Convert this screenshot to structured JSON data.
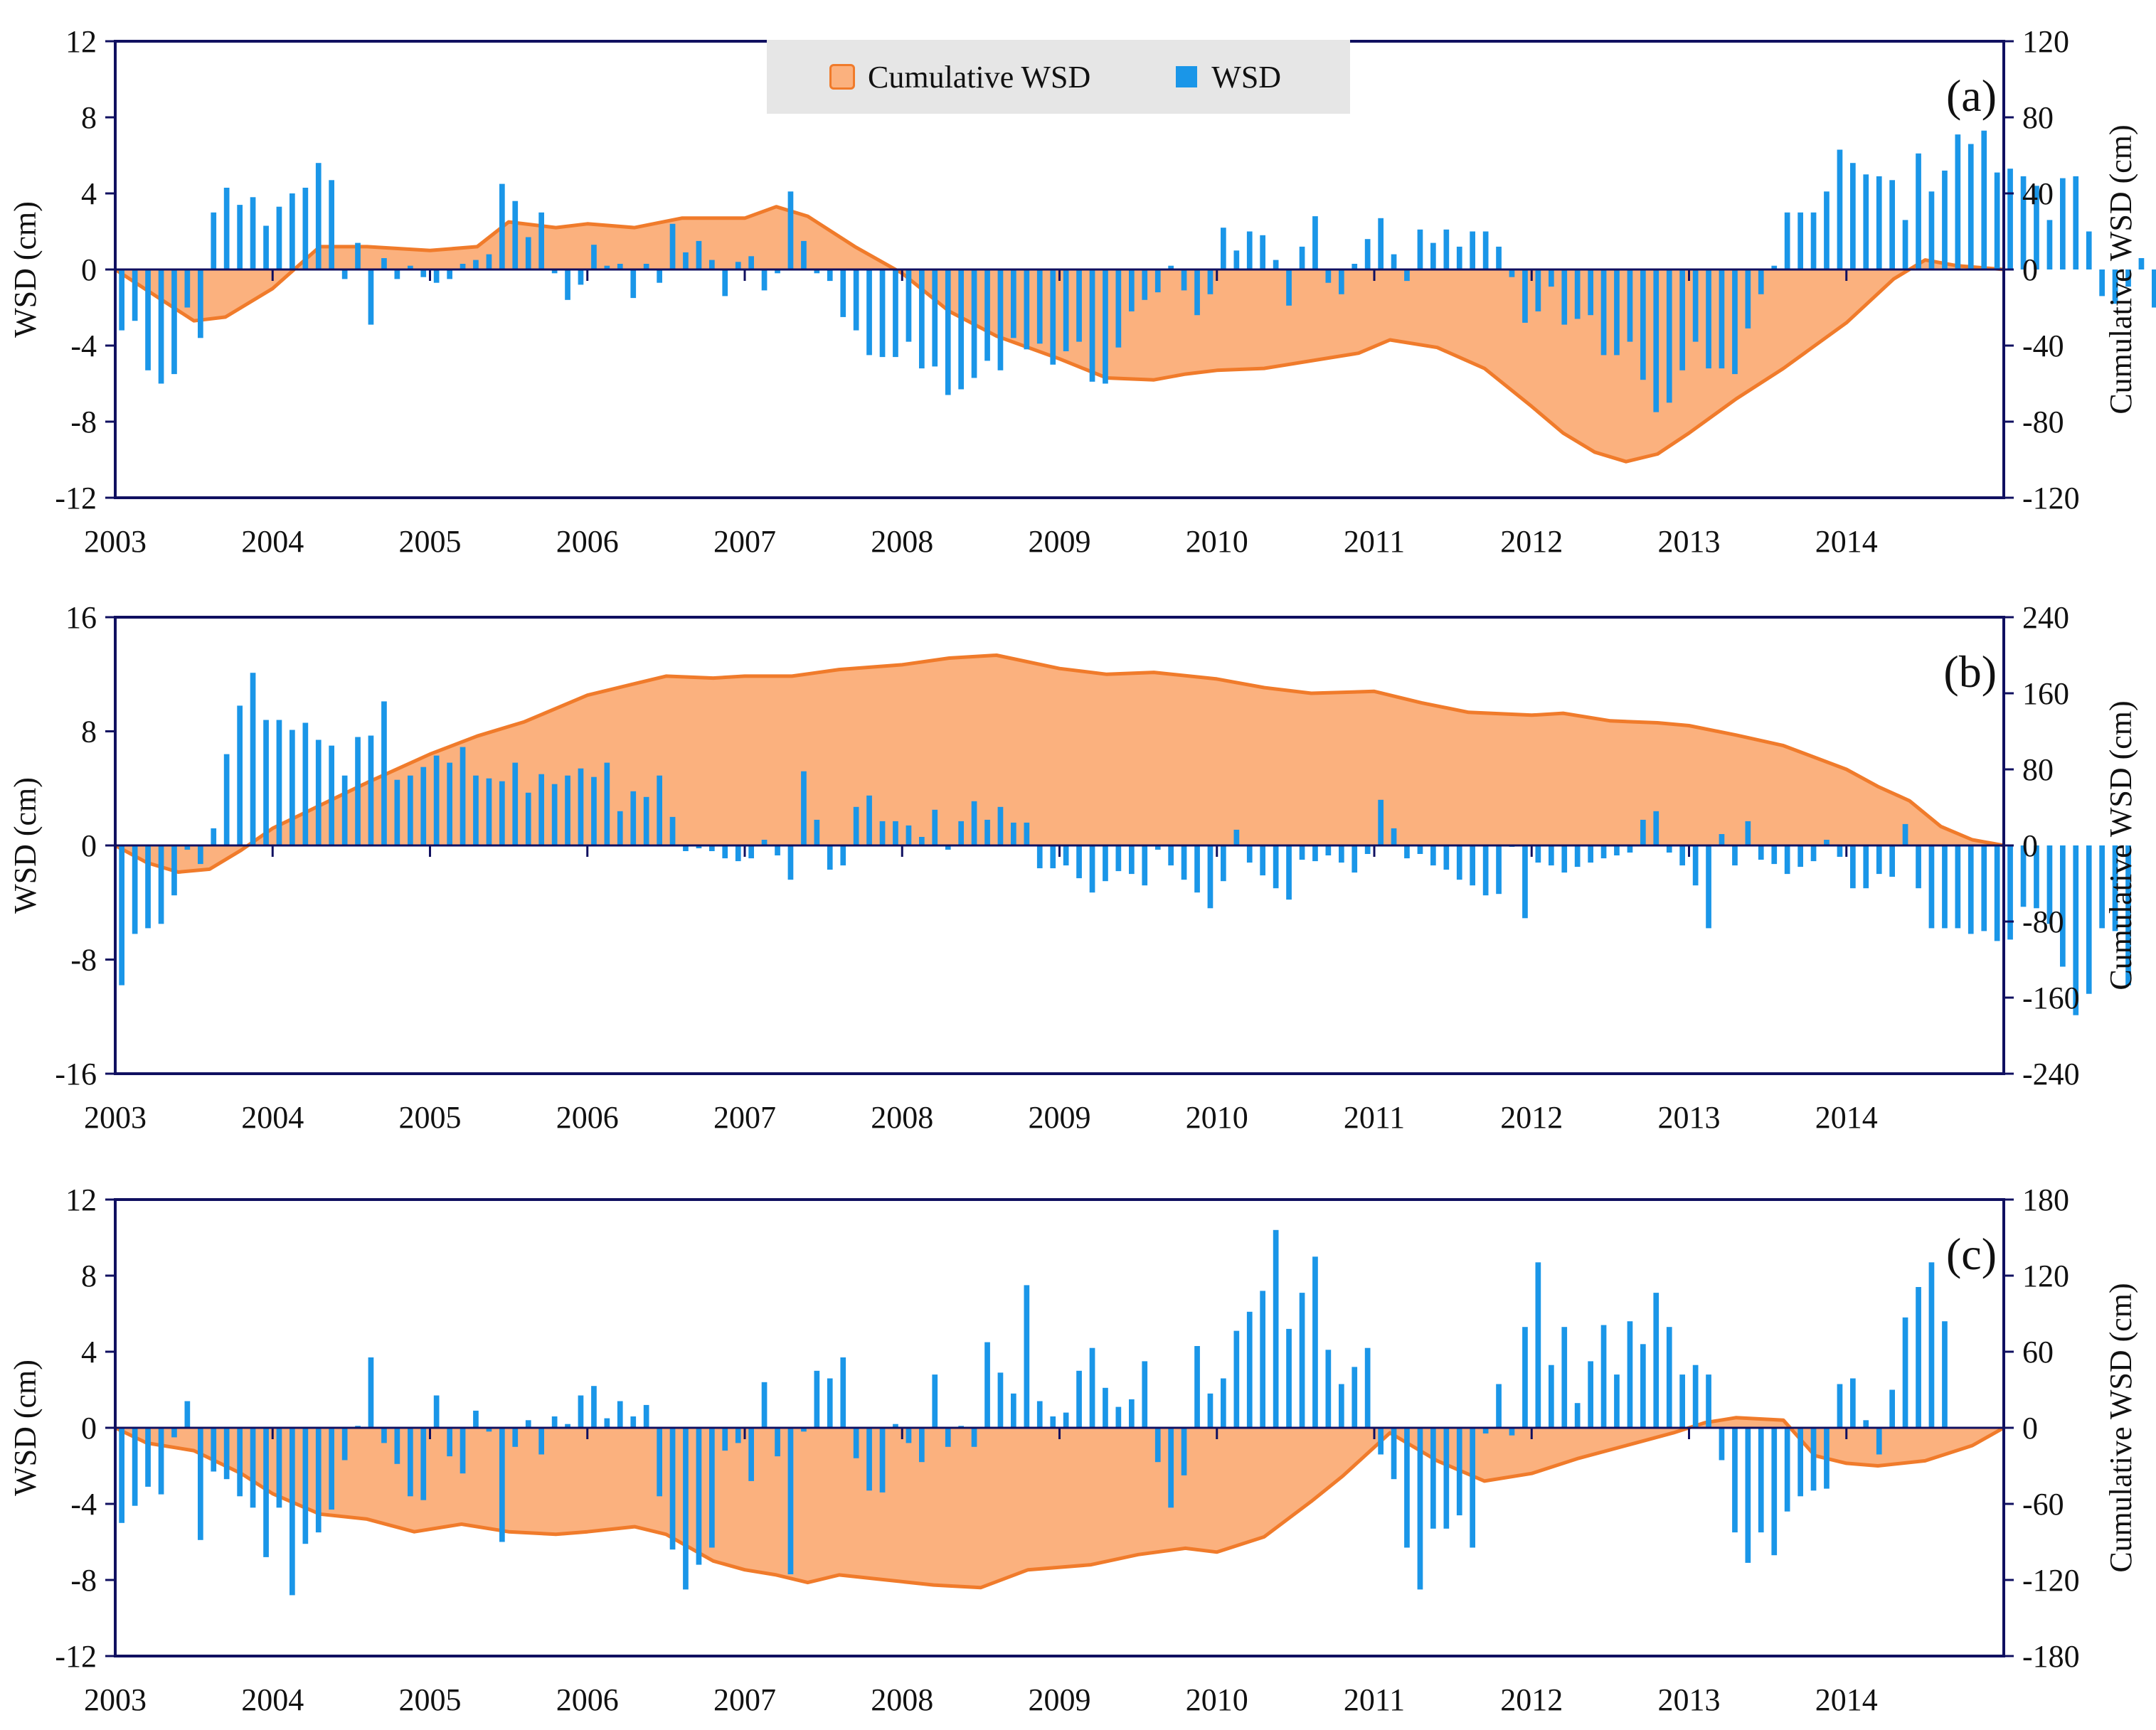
{
  "legend": {
    "cumulative_label": "Cumulative WSD",
    "wsd_label": "WSD"
  },
  "colors": {
    "bar": "#1a96e8",
    "area_fill": "#fbb17e",
    "area_line": "#f07b2b",
    "axis": "#101060",
    "text": "#111111"
  },
  "chart_data": [
    {
      "type": "bar",
      "panel_label": "(a)",
      "ylabel": "WSD (cm)",
      "y2label": "Cumulative WSD (cm)",
      "ylim": [
        -12,
        12
      ],
      "yticks": [
        -12,
        -8,
        -4,
        0,
        4,
        8,
        12
      ],
      "y2lim": [
        -120,
        120
      ],
      "y2ticks": [
        -120,
        -80,
        -40,
        0,
        40,
        80,
        120
      ],
      "xlim": [
        2003,
        2015
      ],
      "xticks": [
        2003,
        2004,
        2005,
        2006,
        2007,
        2008,
        2009,
        2010,
        2011,
        2012,
        2013,
        2014
      ],
      "series": [
        {
          "name": "WSD",
          "kind": "bar",
          "axis": "left",
          "start": 2003.0,
          "step": 0.08333,
          "values": [
            -3.2,
            -2.7,
            -5.3,
            -6.0,
            -5.5,
            -2.0,
            -3.6,
            3.0,
            4.3,
            3.4,
            3.8,
            2.3,
            3.3,
            4.0,
            4.3,
            5.6,
            4.7,
            -0.5,
            1.4,
            -2.9,
            0.6,
            -0.5,
            0.2,
            -0.4,
            -0.7,
            -0.5,
            0.3,
            0.5,
            0.8,
            4.5,
            3.6,
            1.7,
            3.0,
            -0.2,
            -1.6,
            -0.8,
            1.3,
            0.2,
            0.3,
            -1.5,
            0.3,
            -0.7,
            2.4,
            0.9,
            1.5,
            0.5,
            -1.4,
            0.4,
            0.7,
            -1.1,
            -0.2,
            4.1,
            1.5,
            -0.2,
            -0.6,
            -2.5,
            -3.2,
            -4.5,
            -4.6,
            -4.6,
            -3.8,
            -5.2,
            -5.1,
            -6.6,
            -6.3,
            -5.7,
            -4.8,
            -5.3,
            -3.6,
            -4.2,
            -3.9,
            -5.0,
            -4.3,
            -3.8,
            -5.9,
            -6.0,
            -4.1,
            -2.2,
            -1.6,
            -1.2,
            0.2,
            -1.1,
            -2.4,
            -1.3,
            2.2,
            1.0,
            2.0,
            1.8,
            0.5,
            -1.9,
            1.2,
            2.8,
            -0.7,
            -1.3,
            0.3,
            1.6,
            2.7,
            0.8,
            -0.6,
            2.1,
            1.4,
            2.1,
            1.2,
            2.0,
            2.0,
            1.2,
            -0.4,
            -2.8,
            -2.2,
            -0.9,
            -2.9,
            -2.6,
            -2.4,
            -4.5,
            -4.5,
            -3.8,
            -5.8,
            -7.5,
            -7.0,
            -5.3,
            -3.8,
            -5.2,
            -5.2,
            -5.5,
            -3.1,
            -1.3,
            0.2,
            3.0,
            3.0,
            3.0,
            4.1,
            6.3,
            5.6,
            5.0,
            4.9,
            4.7,
            2.6,
            6.1,
            4.1,
            5.2,
            7.1,
            6.6,
            7.3,
            5.1,
            5.3,
            4.9,
            4.4,
            2.6,
            4.8,
            4.9,
            2.0,
            -1.4,
            -1.8,
            -0.9,
            0.6,
            -2.0
          ]
        },
        {
          "name": "Cumulative WSD",
          "kind": "area",
          "axis": "right",
          "years": [
            2003,
            2003.5,
            2003.7,
            2004,
            2004.3,
            2004.6,
            2005,
            2005.3,
            2005.5,
            2005.8,
            2006,
            2006.3,
            2006.6,
            2007,
            2007.2,
            2007.4,
            2007.7,
            2008,
            2008.3,
            2008.6,
            2009,
            2009.3,
            2009.6,
            2009.8,
            2010,
            2010.3,
            2010.6,
            2010.9,
            2011.1,
            2011.4,
            2011.7,
            2012,
            2012.2,
            2012.4,
            2012.6,
            2012.8,
            2013,
            2013.3,
            2013.6,
            2014,
            2014.3,
            2014.5,
            2014.7,
            2015
          ],
          "values": [
            0,
            -27,
            -25,
            -10,
            12,
            12,
            10,
            12,
            25,
            22,
            24,
            22,
            27,
            27,
            33,
            28,
            12,
            -2,
            -22,
            -35,
            -47,
            -57,
            -58,
            -55,
            -53,
            -52,
            -48,
            -44,
            -37,
            -41,
            -52,
            -72,
            -86,
            -96,
            -101,
            -97,
            -86,
            -68,
            -52,
            -28,
            -5,
            5,
            2,
            0
          ]
        }
      ]
    },
    {
      "type": "bar",
      "panel_label": "(b)",
      "ylabel": "WSD (cm)",
      "y2label": "Cumulative WSD (cm)",
      "ylim": [
        -16,
        16
      ],
      "yticks": [
        -16,
        -8,
        0,
        8,
        16
      ],
      "y2lim": [
        -240,
        240
      ],
      "y2ticks": [
        -240,
        -160,
        -80,
        0,
        80,
        160,
        240
      ],
      "xlim": [
        2003,
        2015
      ],
      "xticks": [
        2003,
        2004,
        2005,
        2006,
        2007,
        2008,
        2009,
        2010,
        2011,
        2012,
        2013,
        2014
      ],
      "series": [
        {
          "name": "WSD",
          "kind": "bar",
          "axis": "left",
          "start": 2003.0,
          "step": 0.08333,
          "values": [
            -9.8,
            -6.2,
            -5.8,
            -5.5,
            -3.5,
            -0.3,
            -1.3,
            1.2,
            6.4,
            9.8,
            12.1,
            8.8,
            8.8,
            8.1,
            8.6,
            7.4,
            7.0,
            4.9,
            7.6,
            7.7,
            10.1,
            4.6,
            4.9,
            5.5,
            6.3,
            5.8,
            6.9,
            4.9,
            4.7,
            4.5,
            5.8,
            3.7,
            5.0,
            4.3,
            4.9,
            5.4,
            4.8,
            5.8,
            2.4,
            3.8,
            3.4,
            4.9,
            2.0,
            -0.4,
            -0.2,
            -0.4,
            -0.9,
            -1.1,
            -0.9,
            0.4,
            -0.7,
            -2.4,
            5.2,
            1.8,
            -1.7,
            -1.4,
            2.7,
            3.5,
            1.7,
            1.7,
            1.4,
            0.6,
            2.5,
            -0.3,
            1.7,
            3.1,
            1.8,
            2.7,
            1.6,
            1.6,
            -1.6,
            -1.6,
            -1.4,
            -2.3,
            -3.3,
            -2.5,
            -1.8,
            -2.0,
            -2.8,
            -0.3,
            -1.4,
            -2.4,
            -3.3,
            -4.4,
            -2.5,
            1.1,
            -1.2,
            -2.1,
            -3.0,
            -3.8,
            -1.0,
            -1.1,
            -0.7,
            -1.2,
            -1.9,
            -0.6,
            3.2,
            1.2,
            -0.9,
            -0.6,
            -1.4,
            -1.7,
            -2.4,
            -2.8,
            -3.5,
            -3.4,
            -0.1,
            -5.1,
            -1.2,
            -1.4,
            -1.9,
            -1.5,
            -1.2,
            -0.9,
            -0.7,
            -0.5,
            1.8,
            2.4,
            -0.5,
            -1.4,
            -2.8,
            -5.8,
            0.8,
            -1.4,
            1.7,
            -1.0,
            -1.3,
            -2.0,
            -1.5,
            -1.1,
            0.4,
            -0.8,
            -3.0,
            -3.0,
            -2.0,
            -2.2,
            1.5,
            -3.0,
            -5.8,
            -5.8,
            -5.8,
            -6.2,
            -6.0,
            -6.7,
            -6.6,
            -4.3,
            -4.4,
            -5.5,
            -8.5,
            -11.9,
            -10.4,
            -5.8,
            -6.0,
            -9.8
          ]
        },
        {
          "name": "Cumulative WSD",
          "kind": "area",
          "axis": "right",
          "years": [
            2003,
            2003.2,
            2003.4,
            2003.6,
            2003.8,
            2004,
            2004.3,
            2004.6,
            2005,
            2005.3,
            2005.6,
            2006,
            2006.3,
            2006.5,
            2006.8,
            2007,
            2007.3,
            2007.6,
            2008,
            2008.3,
            2008.6,
            2009,
            2009.3,
            2009.6,
            2010,
            2010.3,
            2010.6,
            2011,
            2011.3,
            2011.6,
            2012,
            2012.2,
            2012.5,
            2012.8,
            2013,
            2013.3,
            2013.6,
            2014,
            2014.2,
            2014.4,
            2014.6,
            2014.8,
            2015
          ],
          "values": [
            0,
            -18,
            -28,
            -25,
            -5,
            18,
            42,
            66,
            96,
            115,
            130,
            158,
            170,
            178,
            176,
            178,
            178,
            185,
            190,
            197,
            200,
            186,
            180,
            182,
            175,
            166,
            160,
            162,
            150,
            140,
            137,
            139,
            131,
            129,
            126,
            116,
            105,
            80,
            62,
            47,
            20,
            6,
            0
          ]
        }
      ]
    },
    {
      "type": "bar",
      "panel_label": "(c)",
      "ylabel": "WSD (cm)",
      "y2label": "Cumulative WSD (cm)",
      "ylim": [
        -12,
        12
      ],
      "yticks": [
        -12,
        -8,
        -4,
        0,
        4,
        8,
        12
      ],
      "y2lim": [
        -180,
        180
      ],
      "y2ticks": [
        -180,
        -120,
        -60,
        0,
        60,
        120,
        180
      ],
      "xlim": [
        2003,
        2015
      ],
      "xticks": [
        2003,
        2004,
        2005,
        2006,
        2007,
        2008,
        2009,
        2010,
        2011,
        2012,
        2013,
        2014
      ],
      "series": [
        {
          "name": "WSD",
          "kind": "bar",
          "axis": "left",
          "start": 2003.0,
          "step": 0.08333,
          "values": [
            -5.0,
            -4.1,
            -3.1,
            -3.5,
            -0.5,
            1.4,
            -5.9,
            -2.3,
            -2.7,
            -3.6,
            -4.2,
            -6.8,
            -4.2,
            -8.8,
            -6.1,
            -5.5,
            -4.3,
            -1.7,
            0.1,
            3.7,
            -0.8,
            -1.9,
            -3.6,
            -3.8,
            1.7,
            -1.5,
            -2.4,
            0.9,
            -0.2,
            -6.0,
            -1.0,
            0.4,
            -1.4,
            0.6,
            0.2,
            1.7,
            2.2,
            0.5,
            1.4,
            0.6,
            1.2,
            -3.6,
            -6.4,
            -8.5,
            -7.2,
            -6.3,
            -1.2,
            -0.8,
            -2.8,
            2.4,
            -1.5,
            -7.7,
            -0.2,
            3.0,
            2.6,
            3.7,
            -1.6,
            -3.3,
            -3.4,
            0.2,
            -0.8,
            -1.8,
            2.8,
            -1.0,
            0.1,
            -1.0,
            4.5,
            2.9,
            1.8,
            7.5,
            1.4,
            0.6,
            0.8,
            3.0,
            4.2,
            2.1,
            1.1,
            1.5,
            3.5,
            -1.8,
            -4.2,
            -2.5,
            4.3,
            1.8,
            2.6,
            5.1,
            6.1,
            7.2,
            10.4,
            5.2,
            7.1,
            9.0,
            4.1,
            2.3,
            3.2,
            4.2,
            -1.4,
            -2.7,
            -6.3,
            -8.5,
            -5.3,
            -5.3,
            -4.6,
            -6.3,
            -0.3,
            2.3,
            -0.4,
            5.3,
            8.7,
            3.3,
            5.3,
            1.3,
            3.5,
            5.4,
            2.8,
            5.6,
            4.4,
            7.1,
            5.3,
            2.8,
            3.3,
            2.8,
            -1.7,
            -5.5,
            -7.1,
            -5.5,
            -6.7,
            -4.4,
            -3.6,
            -3.3,
            -3.2,
            2.3,
            2.6,
            0.4,
            -1.4,
            2.0,
            5.8,
            7.4,
            8.7,
            5.6
          ]
        },
        {
          "name": "Cumulative WSD",
          "kind": "area",
          "axis": "right",
          "years": [
            2003,
            2003.2,
            2003.5,
            2003.8,
            2004,
            2004.3,
            2004.6,
            2004.9,
            2005.2,
            2005.5,
            2005.8,
            2006,
            2006.3,
            2006.5,
            2006.8,
            2007,
            2007.2,
            2007.4,
            2007.6,
            2007.9,
            2008.2,
            2008.5,
            2008.8,
            2009.2,
            2009.5,
            2009.8,
            2010,
            2010.3,
            2010.6,
            2010.8,
            2011.1,
            2011.4,
            2011.7,
            2012,
            2012.3,
            2012.6,
            2012.9,
            2013.1,
            2013.3,
            2013.6,
            2013.8,
            2014,
            2014.2,
            2014.5,
            2014.8,
            2015
          ],
          "values": [
            0,
            -12,
            -18,
            -36,
            -52,
            -68,
            -72,
            -82,
            -76,
            -82,
            -84,
            -82,
            -78,
            -84,
            -105,
            -112,
            -116,
            -122,
            -116,
            -120,
            -124,
            -126,
            -112,
            -108,
            -100,
            -95,
            -98,
            -86,
            -58,
            -38,
            -4,
            -26,
            -42,
            -36,
            -24,
            -14,
            -4,
            4,
            8,
            6,
            -22,
            -28,
            -30,
            -26,
            -14,
            0
          ]
        }
      ]
    }
  ]
}
